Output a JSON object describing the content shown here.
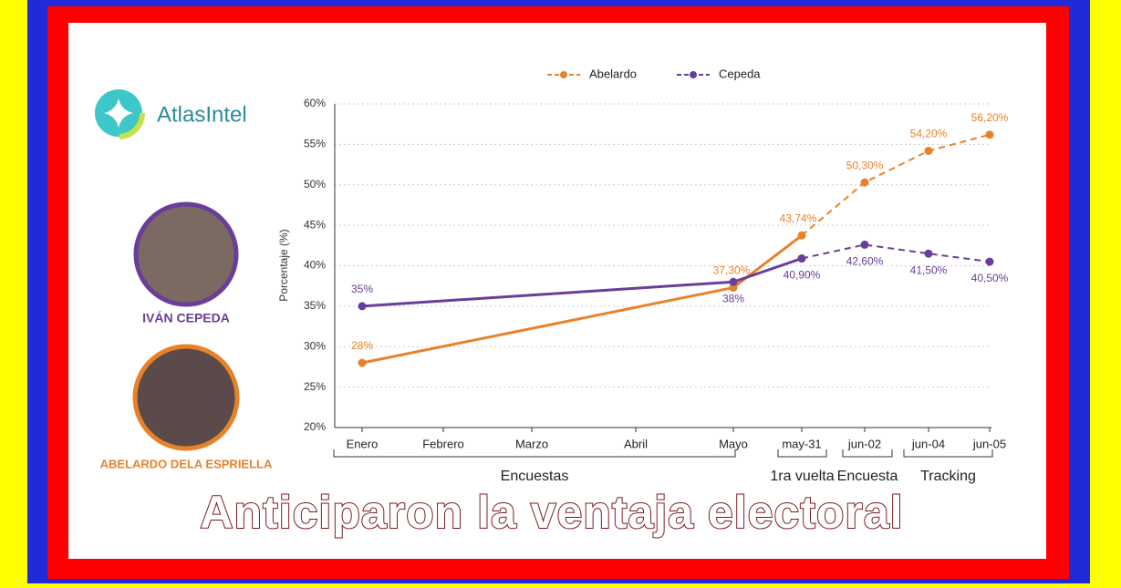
{
  "brand": "AtlasIntel",
  "candidates": [
    {
      "name": "IVÁN CEPEDA"
    },
    {
      "name": "ABELARDO DELA ESPRIELLA"
    }
  ],
  "headline": "Anticiparon la ventaja electoral",
  "chart_data": {
    "type": "line",
    "y_label": "Porcentaje (%)",
    "categories": [
      "Enero",
      "Febrero",
      "Marzo",
      "Abril",
      "Mayo",
      "may-31",
      "jun-02",
      "jun-04",
      "jun-05"
    ],
    "groups": [
      {
        "label": "Encuestas",
        "from": "Enero",
        "to": "Mayo"
      },
      {
        "label": "1ra vuelta",
        "from": "may-31",
        "to": "may-31"
      },
      {
        "label": "Encuesta",
        "from": "jun-02",
        "to": "jun-02"
      },
      {
        "label": "Tracking",
        "from": "jun-04",
        "to": "jun-05"
      }
    ],
    "series": [
      {
        "name": "Abelardo",
        "color": "#e8822a",
        "dashed_from": "may-31",
        "values": [
          28,
          null,
          null,
          null,
          37.3,
          43.74,
          50.3,
          54.2,
          56.2
        ],
        "value_labels": [
          "28%",
          null,
          null,
          null,
          "37,30%",
          "43,74%",
          "50,30%",
          "54,20%",
          "56,20%"
        ]
      },
      {
        "name": "Cepeda",
        "color": "#6a3d9a",
        "dashed_from": "may-31",
        "values": [
          35,
          null,
          null,
          null,
          38,
          40.9,
          42.6,
          41.5,
          40.5
        ],
        "value_labels": [
          "35%",
          null,
          null,
          null,
          "38%",
          "40,90%",
          "42,60%",
          "41,50%",
          "40,50%"
        ]
      }
    ],
    "ylim": [
      20,
      60
    ],
    "yticks": [
      {
        "value": 20,
        "label": "20%"
      },
      {
        "value": 25,
        "label": "25%"
      },
      {
        "value": 30,
        "label": "30%"
      },
      {
        "value": 35,
        "label": "35%"
      },
      {
        "value": 40,
        "label": "40%"
      },
      {
        "value": 45,
        "label": "45%"
      },
      {
        "value": 50,
        "label": "50%"
      },
      {
        "value": 55,
        "label": "55%"
      },
      {
        "value": 60,
        "label": "60%"
      }
    ],
    "grid": true,
    "legend": "top"
  }
}
